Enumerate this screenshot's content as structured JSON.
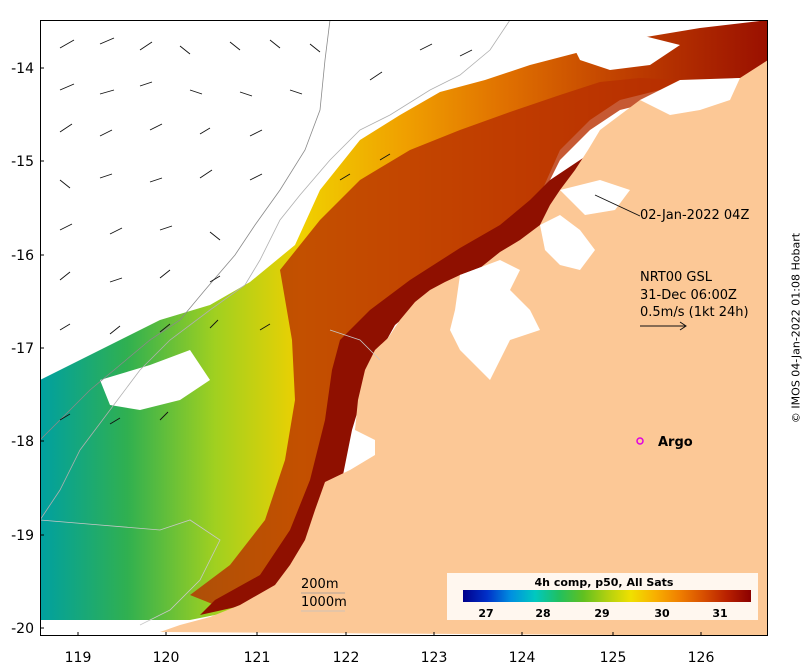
{
  "map": {
    "x_ticks": [
      "119",
      "120",
      "121",
      "122",
      "123",
      "124",
      "125",
      "126"
    ],
    "y_ticks": [
      "-14",
      "-15",
      "-16",
      "-17",
      "-18",
      "-19",
      "-20"
    ]
  },
  "annotations": {
    "swath_time": "02-Jan-2022 04Z",
    "current_product": "NRT00 GSL",
    "current_time": "31-Dec 06:00Z",
    "current_scale": "0.5m/s (1kt 24h)",
    "argo_label": "Argo"
  },
  "bathymetry_legend": {
    "line1": "200m",
    "line2": "1000m"
  },
  "colorbar": {
    "title": "4h comp, p50, All Sats",
    "ticks": [
      "27",
      "28",
      "29",
      "30",
      "31"
    ],
    "colors": [
      "#00008b",
      "#0030c8",
      "#0090e0",
      "#00c8c0",
      "#20c060",
      "#60c020",
      "#b0d010",
      "#f0e000",
      "#f8b000",
      "#f08000",
      "#d85000",
      "#b82000",
      "#8b0000"
    ]
  },
  "credit": "© IMOS 04-Jan-2022 01:08 Hobart",
  "colors": {
    "land": "#fcc896",
    "sea_nodata": "#ffffff",
    "argo_marker": "#e000e0"
  }
}
